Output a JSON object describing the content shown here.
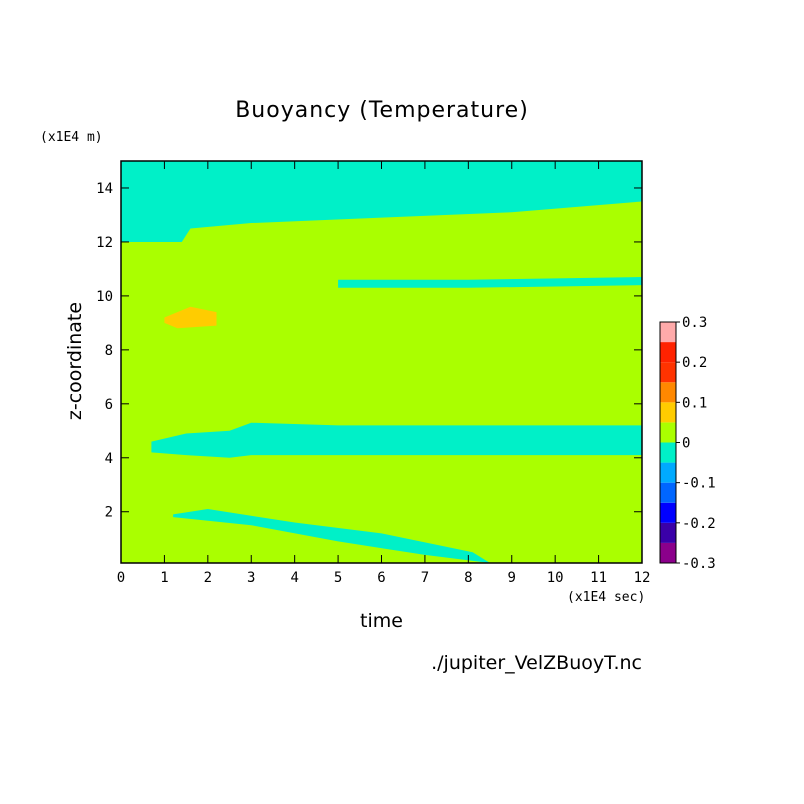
{
  "chart_data": {
    "type": "heatmap",
    "title": "Buoyancy (Temperature)",
    "xlabel": "time",
    "ylabel": "z-coordinate",
    "x_unit": "(x1E4 sec)",
    "y_unit": "(x1E4 m)",
    "xlim": [
      0,
      12
    ],
    "ylim": [
      0.1,
      15
    ],
    "x_ticks": [
      "0",
      "1",
      "2",
      "3",
      "4",
      "5",
      "6",
      "7",
      "8",
      "9",
      "10",
      "11",
      "12"
    ],
    "y_ticks": [
      "2",
      "4",
      "6",
      "8",
      "10",
      "12",
      "14"
    ],
    "colorbar": {
      "levels": [
        "0.3",
        "0.2",
        "0.1",
        "0",
        "-0.1",
        "-0.2",
        "-0.3"
      ],
      "colors": [
        "#8b008b",
        "#3a00a8",
        "#0000ff",
        "#0066ff",
        "#00aaff",
        "#00f0c8",
        "#aaff00",
        "#ffcc00",
        "#ff8800",
        "#ff3300",
        "#ff2200",
        "#ffaaaa"
      ]
    },
    "background_value_color": "#aaff00",
    "regions": [
      {
        "name": "upper cool layer",
        "value": -0.05,
        "t": [
          0,
          1.4,
          1.6,
          3,
          6,
          9,
          12,
          12,
          0
        ],
        "z": [
          12,
          12,
          12.5,
          12.7,
          12.9,
          13.1,
          13.5,
          15,
          15
        ]
      },
      {
        "name": "cool band near 10.5",
        "value": -0.05,
        "t": [
          5,
          8,
          12,
          12,
          8,
          5
        ],
        "z": [
          10.3,
          10.3,
          10.4,
          10.7,
          10.6,
          10.6
        ]
      },
      {
        "name": "cool band near 4.5",
        "value": -0.05,
        "t": [
          0.7,
          1.5,
          2.5,
          3,
          5,
          12,
          12,
          5,
          3,
          2.5,
          1.5,
          0.7
        ],
        "z": [
          4.2,
          4.1,
          4.0,
          4.1,
          4.1,
          4.1,
          5.2,
          5.2,
          5.3,
          5.0,
          4.9,
          4.6
        ]
      },
      {
        "name": "cool lens near bottom",
        "value": -0.05,
        "t": [
          1.2,
          3,
          5,
          7,
          8.5,
          8.1,
          6,
          4,
          2,
          1.2
        ],
        "z": [
          1.8,
          1.5,
          0.9,
          0.4,
          0.1,
          0.5,
          1.2,
          1.6,
          2.1,
          1.9
        ]
      },
      {
        "name": "warm patch near 9",
        "value": 0.08,
        "t": [
          1,
          1.3,
          2.2,
          2.2,
          1.6,
          1.0
        ],
        "z": [
          9.0,
          8.8,
          8.9,
          9.4,
          9.6,
          9.2
        ]
      }
    ]
  },
  "footer": {
    "source": "./jupiter_VelZBuoyT.nc"
  }
}
